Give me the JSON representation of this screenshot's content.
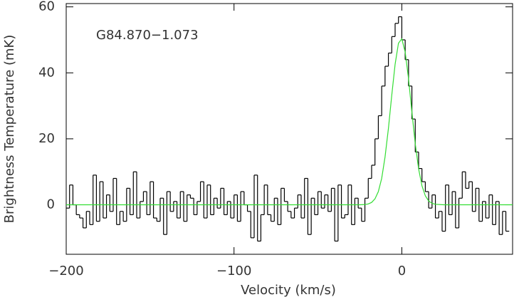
{
  "chart_data": {
    "type": "spectrum",
    "annotation": "G84.870−1.073",
    "xlabel": "Velocity (km/s)",
    "ylabel": "Brightness Temperature (mK)",
    "xlim": [
      -200,
      66
    ],
    "ylim": [
      -15,
      61
    ],
    "xticks": [
      {
        "value": -200,
        "label": "−200"
      },
      {
        "value": -100,
        "label": "−100"
      },
      0
    ],
    "yticks": [
      0,
      20,
      40,
      60
    ],
    "series": [
      {
        "kind": "step",
        "color": "#000000",
        "x": [
          -199,
          -197,
          -195,
          -193,
          -191,
          -189,
          -187,
          -185,
          -183,
          -181,
          -179,
          -177,
          -175,
          -173,
          -171,
          -169,
          -167,
          -165,
          -163,
          -161,
          -159,
          -157,
          -155,
          -153,
          -151,
          -149,
          -147,
          -145,
          -143,
          -141,
          -139,
          -137,
          -135,
          -133,
          -131,
          -129,
          -127,
          -125,
          -123,
          -121,
          -119,
          -117,
          -115,
          -113,
          -111,
          -109,
          -107,
          -105,
          -103,
          -101,
          -99,
          -97,
          -95,
          -93,
          -91,
          -89,
          -87,
          -85,
          -83,
          -81,
          -79,
          -77,
          -75,
          -73,
          -71,
          -69,
          -67,
          -65,
          -63,
          -61,
          -59,
          -57,
          -55,
          -53,
          -51,
          -49,
          -47,
          -45,
          -43,
          -41,
          -39,
          -37,
          -35,
          -33,
          -31,
          -29,
          -27,
          -25,
          -23,
          -21,
          -19,
          -17,
          -15,
          -13,
          -11,
          -9,
          -7,
          -5,
          -3,
          -1,
          1,
          3,
          5,
          7,
          9,
          11,
          13,
          15,
          17,
          19,
          21,
          23,
          25,
          27,
          29,
          31,
          33,
          35,
          37,
          39,
          41,
          43,
          45,
          47,
          49,
          51,
          53,
          55,
          57,
          59,
          61,
          63
        ],
        "values": [
          -1,
          6,
          0,
          -3,
          -4,
          -7,
          -2,
          -6,
          9,
          -5,
          7,
          -4,
          3,
          -2,
          8,
          -6,
          -2,
          -5,
          5,
          -3,
          10,
          -4,
          1,
          4,
          -3,
          7,
          -4,
          -5,
          2,
          -9,
          4,
          -2,
          1,
          -4,
          4,
          -5,
          3,
          2,
          -3,
          1,
          7,
          -4,
          6,
          -3,
          2,
          -1,
          5,
          -3,
          1,
          -4,
          3,
          -5,
          4,
          0,
          -2,
          -10,
          9,
          -11,
          -3,
          6,
          -3,
          -5,
          2,
          -6,
          5,
          1,
          -2,
          -4,
          -1,
          3,
          -4,
          8,
          -9,
          2,
          -3,
          4,
          -1,
          3,
          -2,
          5,
          -11,
          6,
          -4,
          -3,
          6,
          -6,
          2,
          -1,
          -5,
          2,
          8,
          12,
          20,
          27,
          36,
          42,
          46,
          51,
          55,
          57,
          50,
          44,
          36,
          26,
          16,
          11,
          7,
          4,
          -1,
          3,
          -4,
          -2,
          -8,
          6,
          -3,
          4,
          -7,
          2,
          10,
          5,
          7,
          -2,
          5,
          -5,
          1,
          -4,
          3,
          -6,
          1,
          -9,
          -2,
          -8
        ]
      },
      {
        "kind": "line",
        "color": "#33dd33",
        "x": [
          -200,
          -30,
          -25,
          -22,
          -20,
          -18,
          -16,
          -14,
          -12,
          -10,
          -8,
          -6,
          -4,
          -2,
          0,
          2,
          4,
          6,
          8,
          10,
          12,
          14,
          16,
          18,
          20,
          25,
          30,
          66
        ],
        "values": [
          0,
          0,
          0.01,
          0.08,
          0.26,
          0.72,
          1.8,
          4.0,
          8.0,
          14.5,
          23.1,
          33.2,
          42.6,
          49.0,
          50.3,
          46.3,
          38.2,
          28.1,
          18.5,
          10.9,
          5.75,
          2.73,
          1.15,
          0.44,
          0.15,
          0.01,
          0,
          0
        ]
      }
    ]
  }
}
